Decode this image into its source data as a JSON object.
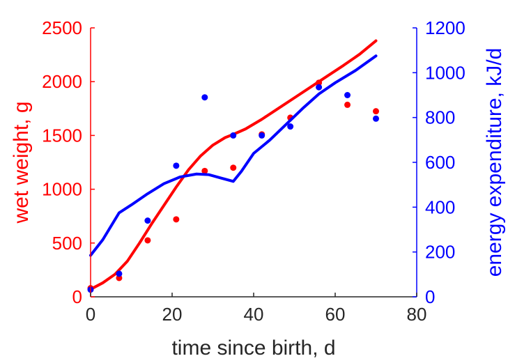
{
  "chart_data": {
    "type": "line",
    "title": "",
    "xlabel": "time since birth, d",
    "ylabel_left": "wet weight, g",
    "ylabel_right": "energy expenditure, kJ/d",
    "xlim": [
      0,
      80
    ],
    "ylim_left": [
      0,
      2500
    ],
    "ylim_right": [
      0,
      1200
    ],
    "x_ticks": [
      "0",
      "20",
      "40",
      "60",
      "80"
    ],
    "y_left_ticks": [
      "0",
      "500",
      "1000",
      "1500",
      "2000",
      "2500"
    ],
    "y_right_ticks": [
      "0",
      "200",
      "400",
      "600",
      "800",
      "1000",
      "1200"
    ],
    "grid": false,
    "legend": "none",
    "colors": {
      "left": "#ff0000",
      "right": "#0000ff",
      "axis": "#262626"
    },
    "series": [
      {
        "axis": "left",
        "kind": "line",
        "color": "#ff0000",
        "x": [
          0,
          3,
          6,
          9,
          12,
          15,
          18,
          21,
          24,
          27,
          30,
          33,
          35,
          38,
          42,
          46,
          50,
          54,
          58,
          62,
          66,
          70
        ],
        "y": [
          70,
          130,
          210,
          330,
          500,
          680,
          850,
          1020,
          1180,
          1310,
          1410,
          1480,
          1510,
          1560,
          1650,
          1750,
          1850,
          1950,
          2050,
          2150,
          2255,
          2380
        ]
      },
      {
        "axis": "left",
        "kind": "scatter",
        "color": "#ff0000",
        "x": [
          0,
          7,
          14,
          21,
          28,
          35,
          42,
          49,
          56,
          63,
          70
        ],
        "y": [
          80,
          175,
          525,
          720,
          1170,
          1200,
          1510,
          1665,
          1990,
          1785,
          1725
        ]
      },
      {
        "axis": "right",
        "kind": "line",
        "color": "#0000ff",
        "x": [
          0,
          3,
          7,
          10,
          14,
          18,
          22,
          26,
          29,
          32,
          35,
          37,
          40,
          44,
          48,
          52,
          56,
          60,
          65,
          70
        ],
        "y": [
          185,
          255,
          375,
          410,
          460,
          505,
          535,
          548,
          545,
          530,
          515,
          560,
          640,
          700,
          770,
          840,
          905,
          955,
          1010,
          1075
        ]
      },
      {
        "axis": "right",
        "kind": "scatter",
        "color": "#0000ff",
        "x": [
          0,
          7,
          14,
          21,
          28,
          35,
          42,
          49,
          56,
          63,
          70
        ],
        "y": [
          32,
          103,
          340,
          585,
          890,
          720,
          720,
          760,
          935,
          900,
          795
        ]
      }
    ]
  }
}
